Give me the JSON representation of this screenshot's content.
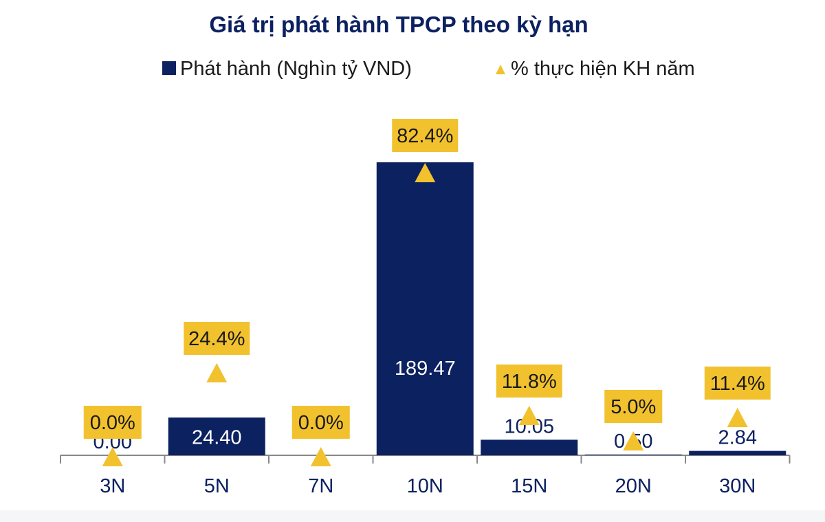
{
  "chart_data": {
    "type": "bar",
    "title": "Giá trị phát hành TPCP theo kỳ hạn",
    "categories": [
      "3N",
      "5N",
      "7N",
      "10N",
      "15N",
      "20N",
      "30N"
    ],
    "series": [
      {
        "name": "Phát hành (Nghìn tỷ VND)",
        "kind": "bar",
        "values": [
          0.0,
          24.4,
          0.0,
          189.47,
          10.05,
          0.5,
          2.84
        ],
        "labels": [
          "0.00",
          "24.40",
          "",
          "189.47",
          "10.05",
          "0.50",
          "2.84"
        ],
        "color": "#0c2160"
      },
      {
        "name": "% thực hiện KH năm",
        "kind": "marker",
        "values": [
          0.0,
          24.4,
          0.0,
          82.4,
          11.8,
          5.0,
          11.4
        ],
        "labels": [
          "0.0%",
          "24.4%",
          "0.0%",
          "82.4%",
          "11.8%",
          "5.0%",
          "11.4%"
        ],
        "color": "#f2c12e"
      }
    ],
    "ylim": [
      0,
      189.47
    ],
    "y2lim": [
      0,
      100
    ],
    "legend_position": "top",
    "grid": false,
    "label_box_color": "#f2c12e",
    "bar_label_color_inside": "#ffffff",
    "bar_label_color_outside": "#0c2160",
    "axis_color": "#888888",
    "title_color": "#0c2160"
  }
}
